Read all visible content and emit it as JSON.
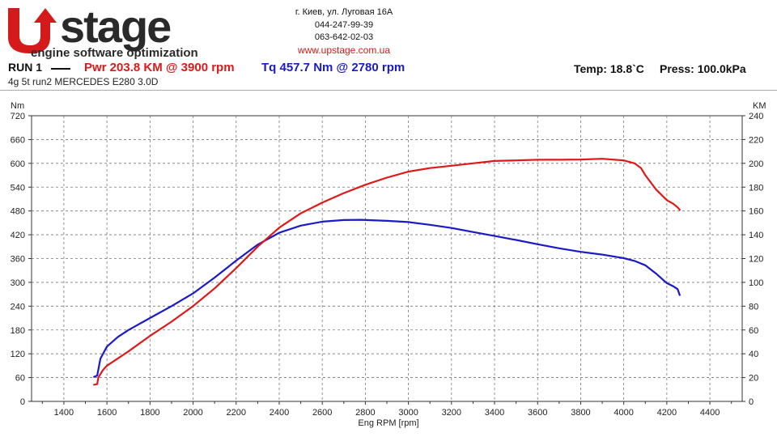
{
  "header": {
    "logo_text": "Upstage",
    "logo_tagline": "engine software optimization",
    "address": "г. Киев, ул. Луговая 16А",
    "phone1": "044-247-99-39",
    "phone2": "063-642-02-03",
    "website": "www.upstage.com.ua",
    "run_label": "RUN 1",
    "power_label": "Pwr  203.8 KM @ 3900 rpm",
    "torque_label": "Tq 457.7 Nm @ 2780 rpm",
    "temp_label": "Temp: 18.8`C",
    "press_label": "Press: 100.0kPa",
    "subtitle": "4g 5t run2 MERCEDES E280 3.0D"
  },
  "colors": {
    "power": "#e01818",
    "torque": "#1a1ac8",
    "logo_red": "#d41a1a",
    "logo_dark": "#2a2a2a"
  },
  "chart_data": {
    "type": "line",
    "xlabel": "Eng RPM [rpm]",
    "ylabel_left": "Nm",
    "ylabel_right": "KM",
    "xlim": [
      1250,
      4550
    ],
    "ylim_left": [
      0,
      720
    ],
    "ylim_right": [
      0,
      240
    ],
    "x_ticks": [
      1400,
      1600,
      1800,
      2000,
      2200,
      2400,
      2600,
      2800,
      3000,
      3200,
      3400,
      3600,
      3800,
      4000,
      4200,
      4400
    ],
    "y_ticks_left": [
      0,
      60,
      120,
      180,
      240,
      300,
      360,
      420,
      480,
      540,
      600,
      660,
      720
    ],
    "y_ticks_right": [
      0,
      20,
      40,
      60,
      80,
      100,
      120,
      140,
      160,
      180,
      200,
      220,
      240
    ],
    "grid": true,
    "series": [
      {
        "name": "Tq",
        "axis": "left",
        "color": "#1a1ac8",
        "x": [
          1540,
          1555,
          1570,
          1600,
          1650,
          1700,
          1800,
          1900,
          2000,
          2100,
          2200,
          2300,
          2400,
          2500,
          2600,
          2700,
          2780,
          2900,
          3000,
          3100,
          3200,
          3300,
          3400,
          3500,
          3600,
          3700,
          3800,
          3900,
          4000,
          4050,
          4100,
          4150,
          4200,
          4230,
          4250,
          4260
        ],
        "y": [
          62,
          65,
          108,
          138,
          162,
          180,
          210,
          240,
          272,
          312,
          355,
          395,
          425,
          443,
          453,
          457,
          457.7,
          455,
          452,
          445,
          437,
          427,
          417,
          407,
          396,
          386,
          377,
          370,
          361,
          354,
          343,
          322,
          298,
          290,
          283,
          268
        ]
      },
      {
        "name": "Pwr",
        "axis": "right",
        "color": "#e01818",
        "x": [
          1540,
          1555,
          1560,
          1580,
          1600,
          1700,
          1800,
          1900,
          2000,
          2100,
          2200,
          2300,
          2400,
          2500,
          2600,
          2700,
          2800,
          2900,
          3000,
          3100,
          3200,
          3300,
          3400,
          3500,
          3600,
          3700,
          3800,
          3900,
          4000,
          4050,
          4080,
          4100,
          4150,
          4200,
          4230,
          4250,
          4260
        ],
        "y": [
          14,
          14.5,
          20,
          26,
          30,
          42,
          55,
          67,
          80,
          95,
          112,
          130,
          146,
          158,
          167,
          175,
          182,
          188,
          193,
          196,
          198,
          200,
          202,
          202.5,
          203,
          203,
          203.2,
          203.8,
          202.5,
          200,
          196,
          190,
          178,
          169,
          166,
          163,
          161
        ]
      }
    ]
  }
}
